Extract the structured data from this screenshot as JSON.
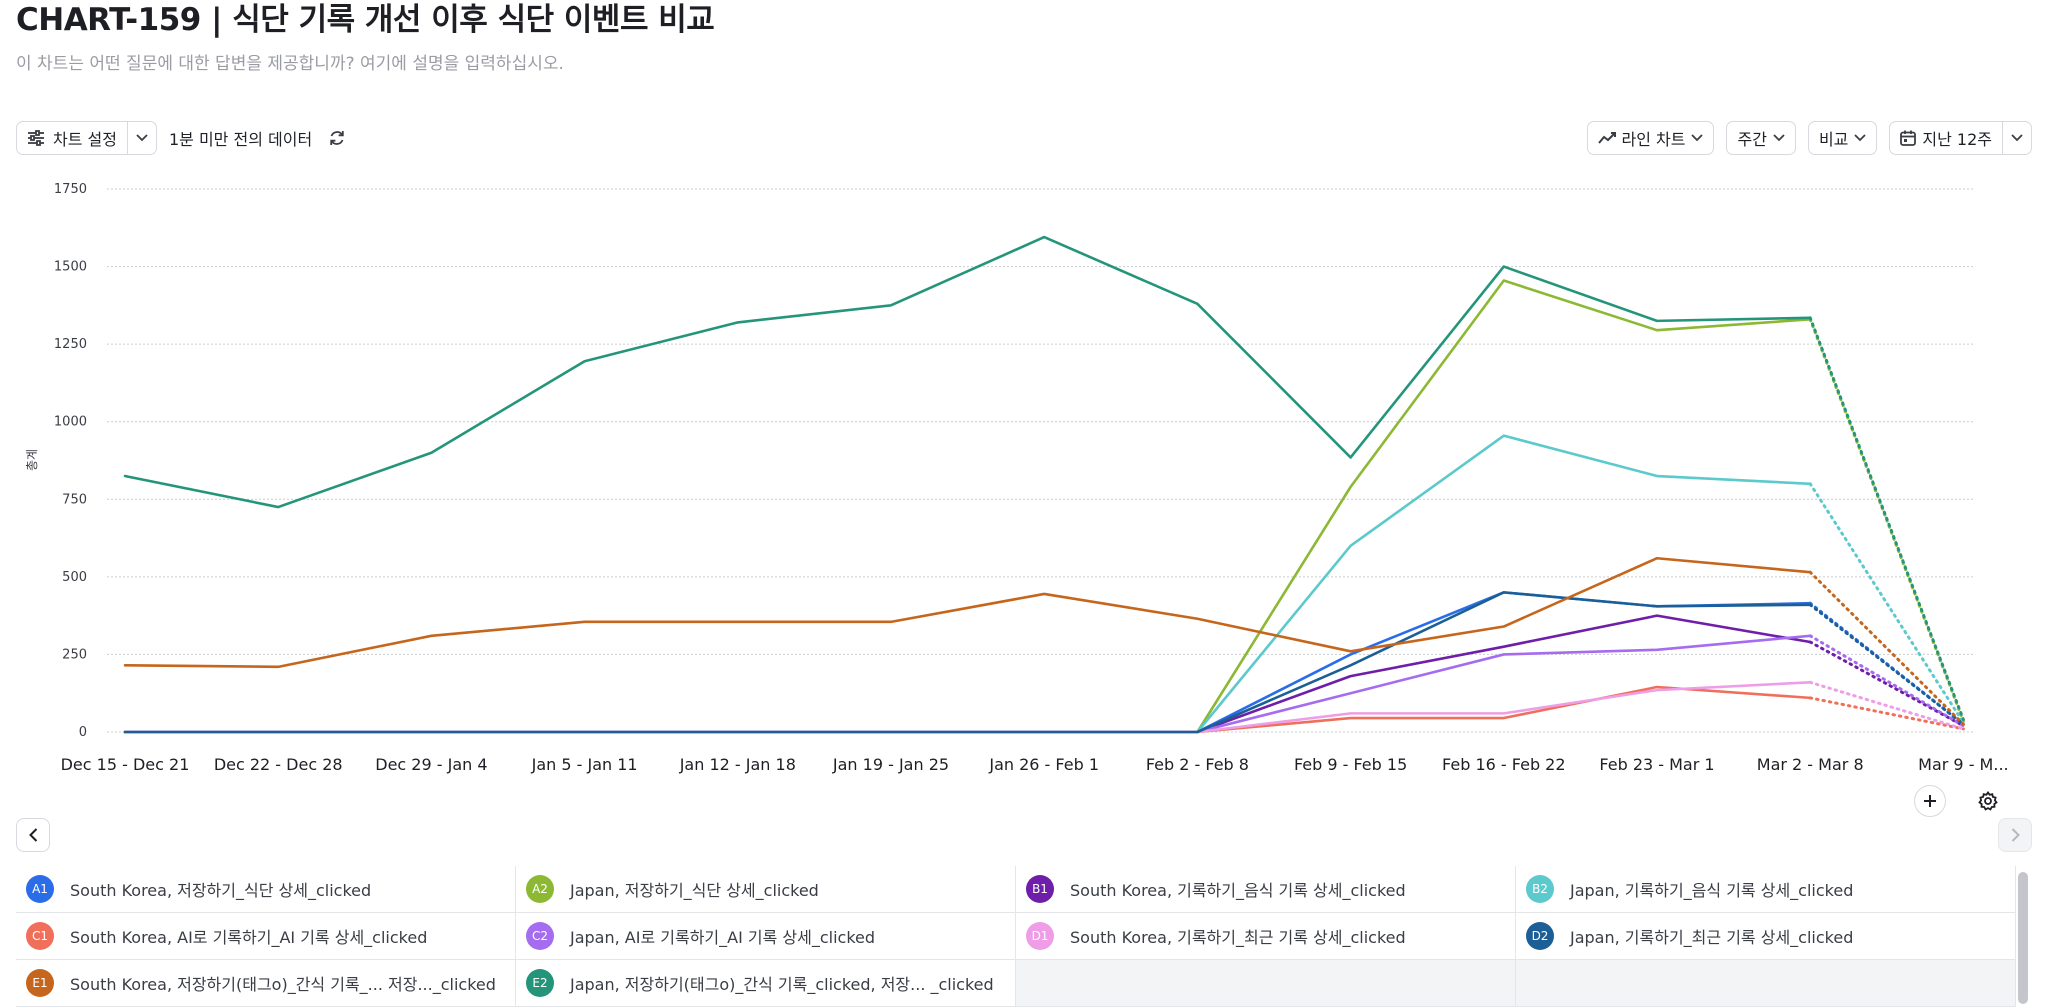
{
  "header": {
    "title": "CHART-159 | 식단 기록 개선 이후 식단 이벤트 비교",
    "subtitle": "이 차트는 어떤 질문에 대한 답변을 제공합니까? 여기에 설명을 입력하십시오."
  },
  "toolbar": {
    "chart_settings_label": "차트 설정",
    "freshness_label": "1분 미만 전의 데이터",
    "chart_type_label": "라인 차트",
    "interval_label": "주간",
    "compare_label": "비교",
    "date_range_label": "지난 12주"
  },
  "icons": {
    "settings": "sliders-icon",
    "refresh": "refresh-icon",
    "line_chart": "line-chart-icon",
    "calendar": "calendar-icon",
    "add": "plus-icon",
    "gear": "gear-icon",
    "prev": "chevron-left-icon",
    "next": "chevron-right-icon"
  },
  "chart_data": {
    "type": "line",
    "title": "",
    "xlabel": "",
    "ylabel": "총계",
    "ylim": [
      0,
      1750
    ],
    "yticks": [
      0,
      250,
      500,
      750,
      1000,
      1250,
      1500,
      1750
    ],
    "grid": true,
    "incomplete_last_period": true,
    "categories": [
      "Dec 15 - Dec 21",
      "Dec 22 - Dec 28",
      "Dec 29 - Jan 4",
      "Jan 5 - Jan 11",
      "Jan 12 - Jan 18",
      "Jan 19 - Jan 25",
      "Jan 26 - Feb 1",
      "Feb 2 - Feb 8",
      "Feb 9 - Feb 15",
      "Feb 16 - Feb 22",
      "Feb 23 - Mar 1",
      "Mar 2 - Mar 8",
      "Mar 9 - M..."
    ],
    "series": [
      {
        "id": "A1",
        "name": "South Korea, 저장하기_식단 상세_clicked",
        "color": "#2b6de8",
        "values": [
          0,
          0,
          0,
          0,
          0,
          0,
          0,
          0,
          250,
          450,
          405,
          415,
          25
        ]
      },
      {
        "id": "A2",
        "name": "Japan, 저장하기_식단 상세_clicked",
        "color": "#8cb833",
        "values": [
          0,
          0,
          0,
          0,
          0,
          0,
          0,
          0,
          790,
          1455,
          1295,
          1330,
          35
        ]
      },
      {
        "id": "B1",
        "name": "South Korea, 기록하기_음식 기록 상세_clicked",
        "color": "#6e1ea8",
        "values": [
          0,
          0,
          0,
          0,
          0,
          0,
          0,
          0,
          180,
          275,
          375,
          290,
          20
        ]
      },
      {
        "id": "B2",
        "name": "Japan, 기록하기_음식 기록 상세_clicked",
        "color": "#5cc9cc",
        "values": [
          0,
          0,
          0,
          0,
          0,
          0,
          0,
          0,
          600,
          955,
          825,
          800,
          30
        ]
      },
      {
        "id": "C1",
        "name": "South Korea, AI로 기록하기_AI 기록 상세_clicked",
        "color": "#f06f5a",
        "values": [
          0,
          0,
          0,
          0,
          0,
          0,
          0,
          0,
          45,
          45,
          145,
          110,
          10
        ]
      },
      {
        "id": "C2",
        "name": "Japan, AI로 기록하기_AI 기록 상세_clicked",
        "color": "#a56cf0",
        "values": [
          0,
          0,
          0,
          0,
          0,
          0,
          0,
          0,
          125,
          250,
          265,
          310,
          20
        ]
      },
      {
        "id": "D1",
        "name": "South Korea, 기록하기_최근 기록 상세_clicked",
        "color": "#ee9de6",
        "values": [
          0,
          0,
          0,
          0,
          0,
          0,
          0,
          0,
          60,
          60,
          135,
          160,
          10
        ]
      },
      {
        "id": "D2",
        "name": "Japan, 기록하기_최근 기록 상세_clicked",
        "color": "#1b5f96",
        "values": [
          0,
          0,
          0,
          0,
          0,
          0,
          0,
          0,
          215,
          450,
          405,
          410,
          25
        ]
      },
      {
        "id": "E1",
        "name": "South Korea, 저장하기(태그o)_간식 기록_... 저장..._clicked",
        "color": "#c5661c",
        "values": [
          215,
          210,
          310,
          355,
          355,
          355,
          445,
          365,
          260,
          340,
          560,
          515,
          25
        ]
      },
      {
        "id": "E2",
        "name": "Japan, 저장하기(태그o)_간식 기록_clicked, 저장... _clicked",
        "color": "#24957a",
        "values": [
          825,
          725,
          900,
          1195,
          1320,
          1375,
          1595,
          1380,
          885,
          1500,
          1325,
          1335,
          40
        ]
      }
    ]
  }
}
